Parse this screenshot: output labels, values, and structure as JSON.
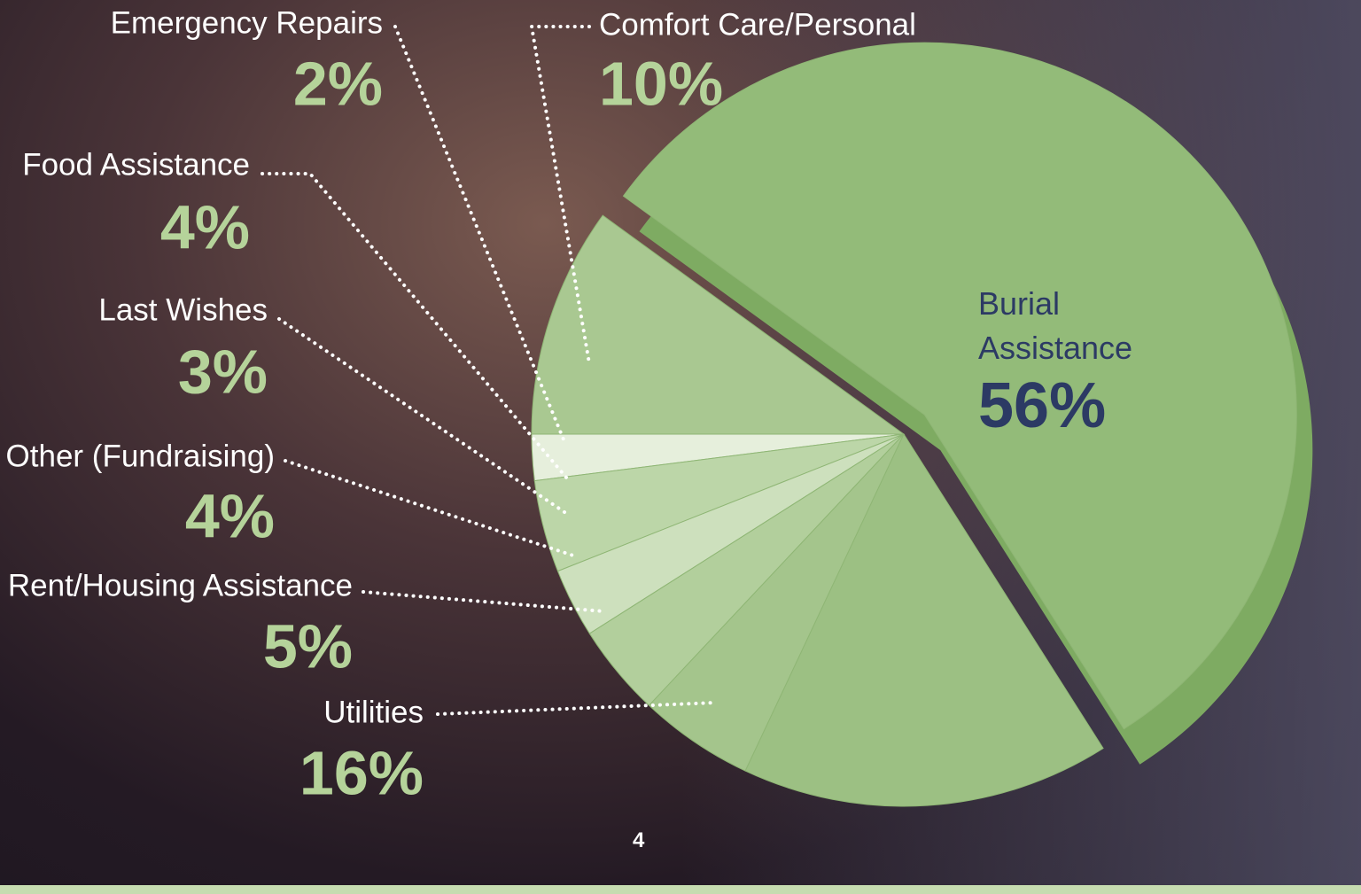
{
  "chart_data": {
    "type": "pie",
    "categories": [
      "Comfort Care/Personal",
      "Emergency Repairs",
      "Food Assistance",
      "Last Wishes",
      "Other (Fundraising)",
      "Rent/Housing Assistance",
      "Utilities",
      "Burial Assistance"
    ],
    "values": [
      10,
      2,
      4,
      3,
      4,
      5,
      16,
      56
    ],
    "value_labels": [
      "10%",
      "2%",
      "4%",
      "3%",
      "4%",
      "5%",
      "16%",
      "56%"
    ],
    "colors": [
      "#a9c891",
      "#e6efdc",
      "#bcd6a8",
      "#cde0bd",
      "#b2cf9c",
      "#a4c58c",
      "#9cc083",
      "#93bb79"
    ]
  },
  "page_number": "4"
}
